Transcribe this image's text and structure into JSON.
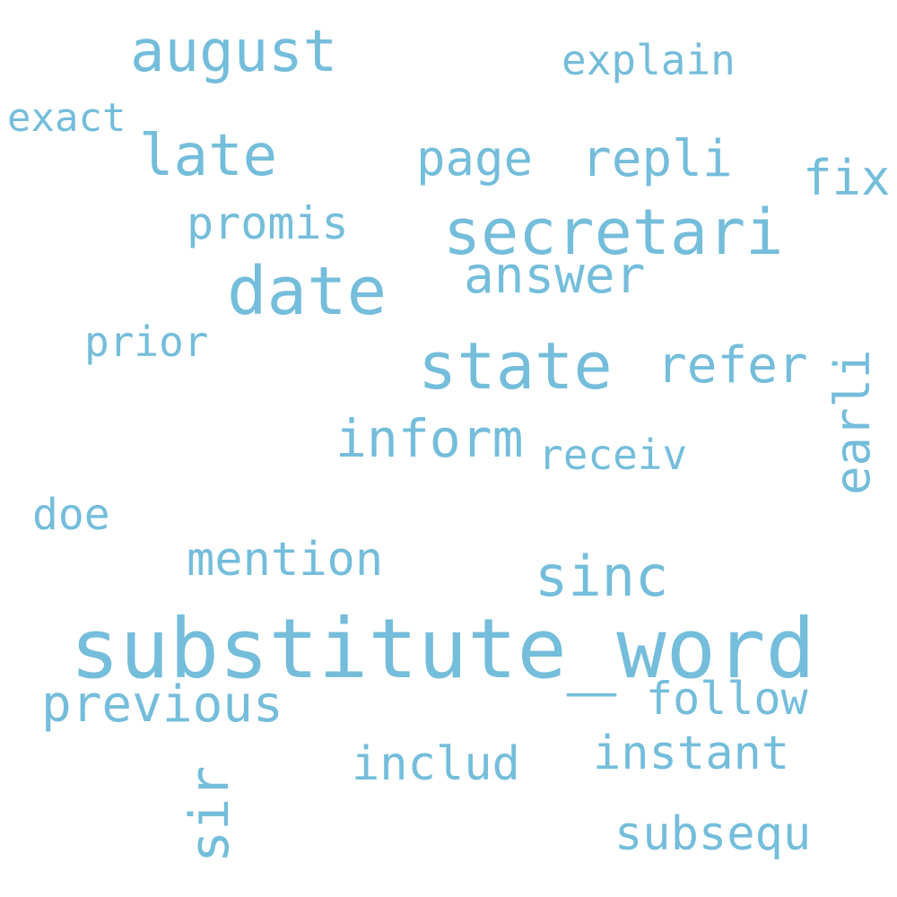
{
  "word_color": "#74BDDB",
  "background_color": "#FFFFFF",
  "words": {
    "substitute_word": "substitute_word",
    "august": "august",
    "explain": "explain",
    "exact": "exact",
    "late": "late",
    "page": "page",
    "repli": "repli",
    "fix": "fix",
    "promis": "promis",
    "secretari": "secretari",
    "answer": "answer",
    "date": "date",
    "prior": "prior",
    "state": "state",
    "refer": "refer",
    "earli": "earli",
    "inform": "inform",
    "receiv": "receiv",
    "doe": "doe",
    "mention": "mention",
    "sinc": "sinc",
    "previous": "previous",
    "follow": "follow",
    "instant": "instant",
    "includ": "includ",
    "sir": "sir",
    "subsequ": "subsequ"
  }
}
